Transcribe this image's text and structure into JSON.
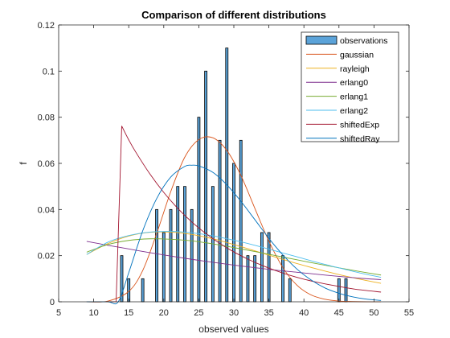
{
  "chart_data": {
    "type": "bar",
    "title": "Comparison of different distributions",
    "xlabel": "observed values",
    "ylabel": "f",
    "xlim": [
      5,
      55
    ],
    "ylim": [
      0,
      0.12
    ],
    "xticks": [
      "5",
      "10",
      "15",
      "20",
      "25",
      "30",
      "35",
      "40",
      "45",
      "50",
      "55"
    ],
    "yticks": [
      "0",
      "0.02",
      "0.04",
      "0.06",
      "0.08",
      "0.1",
      "0.12"
    ],
    "grid": false,
    "legend_position": "top-right",
    "observations": {
      "name": "observations",
      "color": "#5ba3d9",
      "edge_color": "#000000",
      "x": [
        14,
        15,
        17,
        19,
        20,
        21,
        22,
        23,
        24,
        25,
        26,
        27,
        28,
        29,
        30,
        31,
        32,
        33,
        34,
        35,
        37,
        38,
        45,
        46
      ],
      "values": [
        0.02,
        0.01,
        0.01,
        0.04,
        0.03,
        0.04,
        0.05,
        0.05,
        0.04,
        0.08,
        0.1,
        0.05,
        0.07,
        0.11,
        0.06,
        0.07,
        0.02,
        0.02,
        0.03,
        0.03,
        0.02,
        0.01,
        0.01,
        0.01
      ]
    },
    "series": [
      {
        "name": "gaussian",
        "color": "#d95319",
        "x": [
          9,
          12,
          15,
          17,
          19,
          21,
          23,
          25,
          27,
          29,
          31,
          33,
          35,
          37,
          39,
          41,
          43,
          45,
          47,
          49,
          51
        ],
        "values": [
          0.0,
          0.0003,
          0.0045,
          0.0136,
          0.0297,
          0.0478,
          0.0627,
          0.0703,
          0.0711,
          0.0656,
          0.0548,
          0.0405,
          0.0263,
          0.0148,
          0.0072,
          0.003,
          0.0011,
          0.0003,
          0.0001,
          0.0,
          0.0
        ]
      },
      {
        "name": "rayleigh",
        "color": "#edb120",
        "x": [
          9,
          12,
          15,
          18,
          21,
          24,
          27,
          30,
          33,
          36,
          39,
          42,
          45,
          48,
          51
        ],
        "values": [
          0.0205,
          0.0252,
          0.0285,
          0.0301,
          0.0302,
          0.0292,
          0.0273,
          0.0248,
          0.0221,
          0.0193,
          0.0166,
          0.0141,
          0.0118,
          0.0098,
          0.008
        ]
      },
      {
        "name": "erlang0",
        "color": "#7e2f8e",
        "x": [
          9,
          12,
          15,
          18,
          21,
          24,
          27,
          30,
          33,
          36,
          39,
          42,
          45,
          48,
          51
        ],
        "values": [
          0.0262,
          0.0245,
          0.0229,
          0.0213,
          0.0198,
          0.0184,
          0.0171,
          0.0159,
          0.0148,
          0.0137,
          0.0128,
          0.0119,
          0.011,
          0.0102,
          0.0096
        ]
      },
      {
        "name": "erlang1",
        "color": "#77ac30",
        "x": [
          9,
          12,
          15,
          18,
          21,
          24,
          27,
          30,
          33,
          36,
          39,
          42,
          45,
          48,
          51
        ],
        "values": [
          0.0215,
          0.0248,
          0.0266,
          0.0273,
          0.0271,
          0.0264,
          0.0251,
          0.0235,
          0.0218,
          0.02,
          0.0182,
          0.0164,
          0.0147,
          0.0131,
          0.0116
        ]
      },
      {
        "name": "erlang2",
        "color": "#4dbeee",
        "x": [
          9,
          12,
          15,
          18,
          21,
          24,
          27,
          30,
          33,
          36,
          39,
          42,
          45,
          48,
          51
        ],
        "values": [
          0.0205,
          0.0258,
          0.0287,
          0.0302,
          0.0305,
          0.0299,
          0.0286,
          0.0267,
          0.0245,
          0.022,
          0.0195,
          0.017,
          0.0147,
          0.0125,
          0.0106
        ]
      },
      {
        "name": "shiftedExp",
        "color": "#a2142f",
        "x": [
          9,
          13.2,
          14.0,
          15,
          16,
          18,
          20,
          22,
          24,
          26,
          28,
          30,
          32,
          34,
          36,
          38,
          40,
          42,
          44,
          46,
          48,
          51
        ],
        "values": [
          0,
          0,
          0.0762,
          0.0702,
          0.0649,
          0.0555,
          0.0474,
          0.0405,
          0.0346,
          0.0296,
          0.0253,
          0.0216,
          0.0185,
          0.0158,
          0.0135,
          0.0115,
          0.0098,
          0.0084,
          0.0072,
          0.0061,
          0.0052,
          0.0042
        ]
      },
      {
        "name": "shiftedRay",
        "color": "#0072bd",
        "x": [
          9,
          12,
          13.5,
          15,
          17,
          19,
          21,
          23,
          24,
          25,
          27,
          29,
          31,
          33,
          35,
          37,
          39,
          41,
          43,
          45,
          47,
          49,
          51
        ],
        "values": [
          0,
          0,
          0,
          0.0126,
          0.0308,
          0.0448,
          0.0541,
          0.0587,
          0.0592,
          0.0589,
          0.0561,
          0.0507,
          0.0436,
          0.0356,
          0.0275,
          0.0203,
          0.0142,
          0.0095,
          0.006,
          0.0037,
          0.0021,
          0.0011,
          0.0006
        ]
      }
    ]
  }
}
